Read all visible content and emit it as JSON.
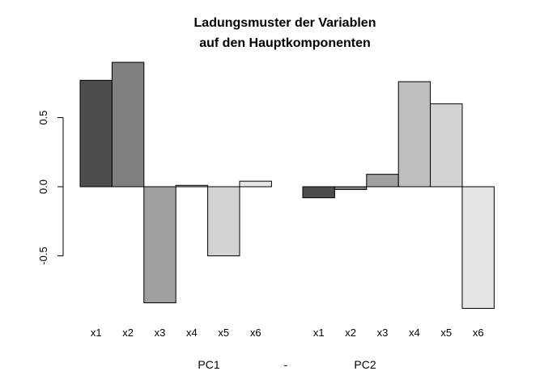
{
  "chart_data": {
    "type": "bar",
    "title_lines": [
      "Ladungsmuster der Variablen",
      "auf den Hauptkomponenten"
    ],
    "group_labels": [
      "PC1",
      "-",
      "PC2"
    ],
    "categories": [
      "x1",
      "x2",
      "x3",
      "x4",
      "x5",
      "x6"
    ],
    "series": [
      {
        "name": "PC1",
        "values": [
          0.77,
          0.9,
          -0.84,
          0.01,
          -0.5,
          0.04
        ]
      },
      {
        "name": "PC2",
        "values": [
          -0.08,
          -0.02,
          0.09,
          0.76,
          0.6,
          -0.88
        ]
      }
    ],
    "bar_colors": [
      "#4d4d4d",
      "#7f7f7f",
      "#a0a0a0",
      "#bebebe",
      "#d3d3d3",
      "#e6e6e6"
    ],
    "yticks": [
      -0.5,
      0.0,
      0.5
    ],
    "ytick_labels": [
      "-0.5",
      "0.0",
      "0.5"
    ],
    "ylim": [
      -0.9,
      0.9
    ],
    "legend": "none",
    "grid": false
  }
}
